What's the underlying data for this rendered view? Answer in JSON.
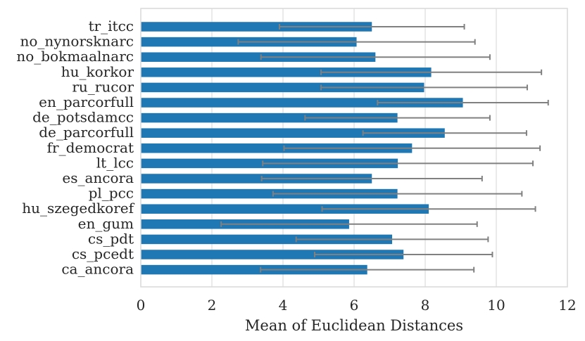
{
  "chart_data": {
    "type": "bar",
    "orientation": "horizontal",
    "title": "",
    "xlabel": "Mean of Euclidean Distances",
    "ylabel": "",
    "xlim": [
      0,
      12
    ],
    "xticks": [
      0,
      2,
      4,
      6,
      8,
      10,
      12
    ],
    "grid": true,
    "legend": "none",
    "bar_color": "#1f77b4",
    "error_color": "#808080",
    "categories": [
      "tr_itcc",
      "no_nynorsknarc",
      "no_bokmaalnarc",
      "hu_korkor",
      "ru_rucor",
      "en_parcorfull",
      "de_potsdamcc",
      "de_parcorfull",
      "fr_democrat",
      "lt_lcc",
      "es_ancora",
      "pl_pcc",
      "hu_szegedkoref",
      "en_gum",
      "cs_pdt",
      "cs_pcedt",
      "ca_ancora"
    ],
    "values": [
      6.5,
      6.07,
      6.6,
      8.17,
      7.97,
      9.06,
      7.22,
      8.55,
      7.63,
      7.23,
      6.5,
      7.22,
      8.1,
      5.86,
      7.07,
      7.39,
      6.37
    ],
    "errors": [
      2.6,
      3.33,
      3.22,
      3.1,
      2.9,
      2.4,
      2.6,
      2.3,
      3.6,
      3.8,
      3.1,
      3.5,
      3.0,
      3.6,
      2.7,
      2.5,
      3.0
    ]
  }
}
